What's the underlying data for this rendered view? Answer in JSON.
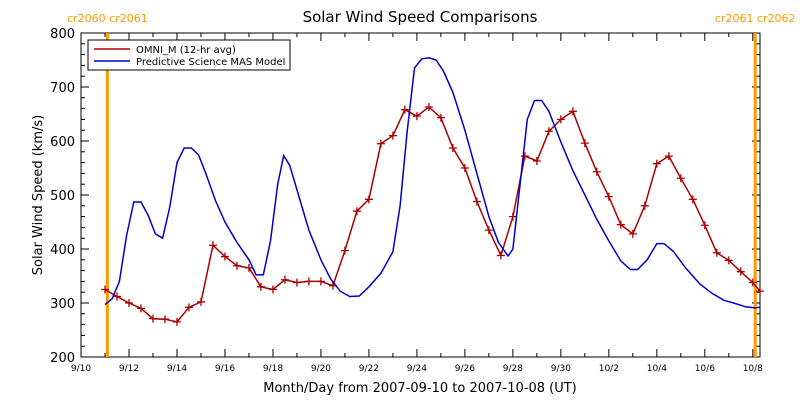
{
  "chart_data": {
    "type": "line",
    "title": "Solar Wind Speed Comparisons",
    "xlabel": "Month/Day from 2007-09-10 to 2007-10-08 (UT)",
    "ylabel": "Solar Wind Speed (km/s)",
    "xlim": [
      0,
      28.3
    ],
    "ylim": [
      200,
      800
    ],
    "yticks": [
      200,
      300,
      400,
      500,
      600,
      700,
      800
    ],
    "xticks": [
      {
        "x": 0,
        "label": "9/10"
      },
      {
        "x": 2,
        "label": "9/12"
      },
      {
        "x": 4,
        "label": "9/14"
      },
      {
        "x": 6,
        "label": "9/16"
      },
      {
        "x": 8,
        "label": "9/18"
      },
      {
        "x": 10,
        "label": "9/20"
      },
      {
        "x": 12,
        "label": "9/22"
      },
      {
        "x": 14,
        "label": "9/24"
      },
      {
        "x": 16,
        "label": "9/26"
      },
      {
        "x": 18,
        "label": "9/28"
      },
      {
        "x": 20,
        "label": "9/30"
      },
      {
        "x": 22,
        "label": "10/2"
      },
      {
        "x": 24,
        "label": "10/4"
      },
      {
        "x": 26,
        "label": "10/6"
      },
      {
        "x": 28,
        "label": "10/8"
      }
    ],
    "carrington_markers": [
      {
        "x": 1.1,
        "label": "cr2060 cr2061"
      },
      {
        "x": 28.1,
        "label": "cr2061 cr2062"
      }
    ],
    "legend_position": "top-left",
    "series": [
      {
        "name": "OMNI_M (12-hr avg)",
        "color": "#aa0000",
        "marker": "plus",
        "points": [
          [
            1.0,
            325
          ],
          [
            1.5,
            312
          ],
          [
            2.0,
            300
          ],
          [
            2.5,
            290
          ],
          [
            3.0,
            271
          ],
          [
            3.5,
            270
          ],
          [
            4.0,
            265
          ],
          [
            4.5,
            292
          ],
          [
            5.0,
            302
          ],
          [
            5.5,
            407
          ],
          [
            6.0,
            386
          ],
          [
            6.5,
            369
          ],
          [
            7.0,
            365
          ],
          [
            7.5,
            330
          ],
          [
            8.0,
            325
          ],
          [
            8.5,
            343
          ],
          [
            9.0,
            338
          ],
          [
            9.5,
            340
          ],
          [
            10.0,
            340
          ],
          [
            10.5,
            332
          ],
          [
            11.0,
            397
          ],
          [
            11.5,
            470
          ],
          [
            12.0,
            492
          ],
          [
            12.5,
            595
          ],
          [
            13.0,
            610
          ],
          [
            13.5,
            658
          ],
          [
            14.0,
            646
          ],
          [
            14.5,
            663
          ],
          [
            15.0,
            643
          ],
          [
            15.5,
            587
          ],
          [
            16.0,
            550
          ],
          [
            16.5,
            488
          ],
          [
            17.0,
            435
          ],
          [
            17.5,
            388
          ],
          [
            18.0,
            460
          ],
          [
            18.5,
            572
          ],
          [
            19.0,
            563
          ],
          [
            19.5,
            618
          ],
          [
            20.0,
            640
          ],
          [
            20.5,
            655
          ],
          [
            21.0,
            596
          ],
          [
            21.5,
            543
          ],
          [
            22.0,
            497
          ],
          [
            22.5,
            445
          ],
          [
            23.0,
            428
          ],
          [
            23.5,
            480
          ],
          [
            24.0,
            558
          ],
          [
            24.5,
            572
          ],
          [
            25.0,
            531
          ],
          [
            25.5,
            492
          ],
          [
            26.0,
            444
          ],
          [
            26.5,
            393
          ],
          [
            27.0,
            379
          ],
          [
            27.5,
            358
          ],
          [
            28.0,
            338
          ],
          [
            28.3,
            322
          ]
        ]
      },
      {
        "name": "Predictive Science MAS Model",
        "color": "#0000cc",
        "marker": "none",
        "points": [
          [
            1.0,
            297
          ],
          [
            1.3,
            308
          ],
          [
            1.6,
            340
          ],
          [
            1.9,
            425
          ],
          [
            2.2,
            487
          ],
          [
            2.5,
            487
          ],
          [
            2.8,
            462
          ],
          [
            3.1,
            428
          ],
          [
            3.4,
            420
          ],
          [
            3.7,
            478
          ],
          [
            4.0,
            560
          ],
          [
            4.3,
            587
          ],
          [
            4.6,
            587
          ],
          [
            4.9,
            574
          ],
          [
            5.2,
            540
          ],
          [
            5.6,
            490
          ],
          [
            6.0,
            450
          ],
          [
            6.5,
            412
          ],
          [
            7.0,
            380
          ],
          [
            7.3,
            352
          ],
          [
            7.6,
            352
          ],
          [
            7.9,
            415
          ],
          [
            8.2,
            520
          ],
          [
            8.45,
            573
          ],
          [
            8.7,
            555
          ],
          [
            9.0,
            510
          ],
          [
            9.5,
            435
          ],
          [
            10.0,
            380
          ],
          [
            10.4,
            345
          ],
          [
            10.8,
            322
          ],
          [
            11.2,
            312
          ],
          [
            11.6,
            313
          ],
          [
            12.0,
            330
          ],
          [
            12.5,
            355
          ],
          [
            13.0,
            395
          ],
          [
            13.3,
            480
          ],
          [
            13.6,
            620
          ],
          [
            13.9,
            735
          ],
          [
            14.2,
            752
          ],
          [
            14.5,
            754
          ],
          [
            14.8,
            750
          ],
          [
            15.1,
            730
          ],
          [
            15.5,
            690
          ],
          [
            16.0,
            620
          ],
          [
            16.5,
            540
          ],
          [
            17.0,
            460
          ],
          [
            17.4,
            412
          ],
          [
            17.8,
            387
          ],
          [
            18.0,
            400
          ],
          [
            18.3,
            520
          ],
          [
            18.6,
            640
          ],
          [
            18.9,
            675
          ],
          [
            19.2,
            675
          ],
          [
            19.5,
            655
          ],
          [
            20.0,
            598
          ],
          [
            20.5,
            545
          ],
          [
            21.0,
            500
          ],
          [
            21.5,
            455
          ],
          [
            22.0,
            415
          ],
          [
            22.5,
            378
          ],
          [
            22.9,
            362
          ],
          [
            23.2,
            362
          ],
          [
            23.6,
            380
          ],
          [
            24.0,
            410
          ],
          [
            24.3,
            410
          ],
          [
            24.7,
            395
          ],
          [
            25.2,
            365
          ],
          [
            25.8,
            335
          ],
          [
            26.3,
            318
          ],
          [
            26.8,
            305
          ],
          [
            27.2,
            300
          ],
          [
            27.7,
            293
          ],
          [
            28.1,
            291
          ],
          [
            28.3,
            292
          ]
        ]
      }
    ]
  }
}
